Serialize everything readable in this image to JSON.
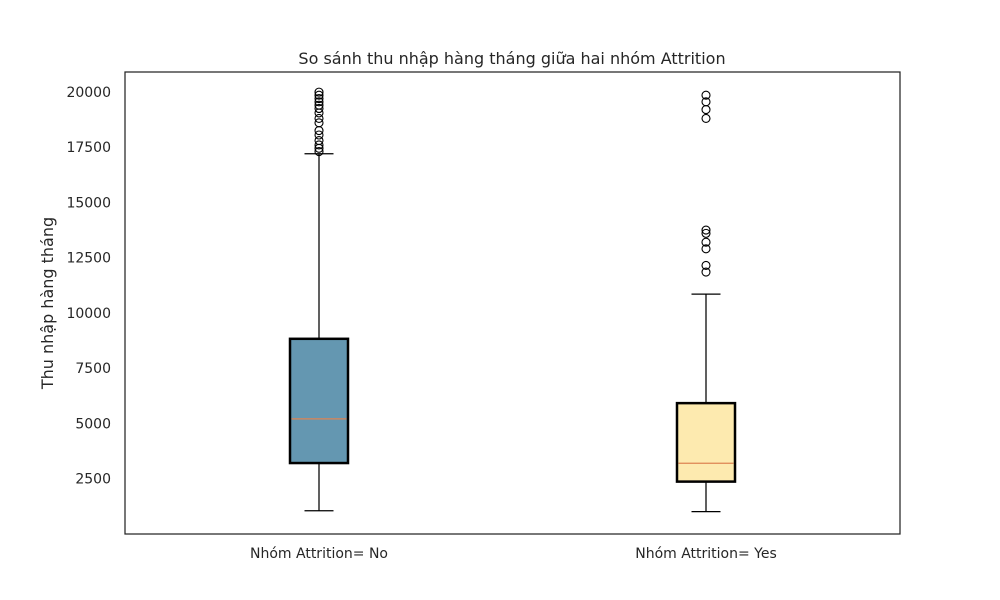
{
  "chart_data": {
    "type": "boxplot",
    "title": "So sánh thu nhập hàng tháng giữa hai nhóm Attrition",
    "xlabel": "",
    "ylabel": "Thu nhập hàng tháng",
    "ylim": [
      0,
      20900
    ],
    "yticks": [
      2500,
      5000,
      7500,
      10000,
      12500,
      15000,
      17500,
      20000
    ],
    "grid": false,
    "categories": [
      "Nhóm Attrition= No",
      "Nhóm Attrition= Yes"
    ],
    "boxes": [
      {
        "category": "Nhóm Attrition= No",
        "whisker_low": 1050,
        "q1": 3210,
        "median": 5210,
        "q3": 8830,
        "whisker_high": 17200,
        "outliers": [
          17300,
          17450,
          17600,
          17800,
          18050,
          18250,
          18600,
          18800,
          19050,
          19250,
          19400,
          19550,
          19700,
          19850,
          19990
        ],
        "fill": "#6497b1"
      },
      {
        "category": "Nhóm Attrition= Yes",
        "whisker_low": 1010,
        "q1": 2370,
        "median": 3200,
        "q3": 5920,
        "whisker_high": 10850,
        "outliers": [
          11850,
          12150,
          12900,
          13200,
          13600,
          13750,
          18800,
          19200,
          19550,
          19850
        ],
        "fill": "#fdeaaf"
      }
    ],
    "colors": {
      "median": "#dd8452",
      "box_edge": "#000000",
      "frame": "#262626"
    }
  }
}
